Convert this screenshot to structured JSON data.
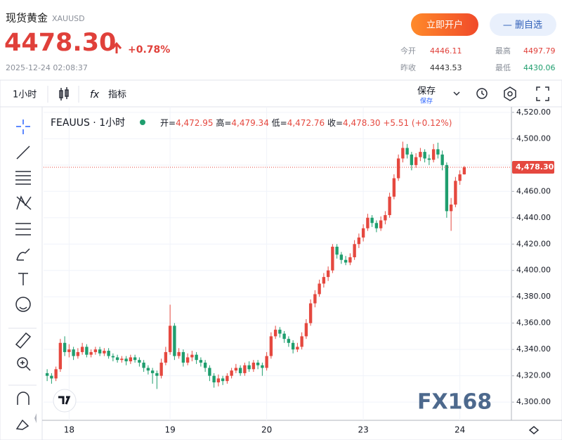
{
  "header": {
    "name": "现货黄金",
    "symbol": "XAUUSD",
    "price": "4478.30",
    "change": "+0.78%",
    "time": "2025-12-24 02:08:37",
    "open_account": "立即开户",
    "remove_watch": "— 删自选"
  },
  "stats": [
    {
      "label": "今开",
      "value": "4446.11"
    },
    {
      "label": "最高",
      "value": "4497.79"
    },
    {
      "label": "昨收",
      "value": "4443.53"
    },
    {
      "label": "最低",
      "value": "4430.06"
    }
  ],
  "toolbar": {
    "interval": "1小时",
    "fx": "fx",
    "indicators": "指标",
    "save": "保存",
    "save_sub": "保存"
  },
  "legend": {
    "title": "FEAUUS · 1小时",
    "open": {
      "label": "开=",
      "value": "4,472.95"
    },
    "high": {
      "label": "高=",
      "value": "4,479.34"
    },
    "low": {
      "label": "低=",
      "value": "4,472.76"
    },
    "close": {
      "label": "收=",
      "value": "4,478.30"
    },
    "change": "+5.51 (+0.12%)"
  },
  "watermark": "FX168",
  "chart_data": {
    "type": "candlestick",
    "up_color": "#e5483f",
    "down_color": "#1f9e6e",
    "grid": true,
    "categories": [
      null,
      null,
      null,
      null,
      null,
      "18",
      null,
      null,
      null,
      null,
      null,
      null,
      null,
      null,
      null,
      null,
      null,
      null,
      null,
      null,
      null,
      null,
      null,
      null,
      null,
      null,
      null,
      null,
      "19",
      null,
      null,
      null,
      null,
      null,
      null,
      null,
      null,
      null,
      null,
      null,
      null,
      null,
      null,
      null,
      null,
      null,
      null,
      null,
      null,
      null,
      "20",
      null,
      null,
      null,
      null,
      null,
      null,
      null,
      null,
      null,
      null,
      null,
      null,
      null,
      null,
      null,
      null,
      null,
      null,
      null,
      null,
      null,
      "23",
      null,
      null,
      null,
      null,
      null,
      null,
      null,
      null,
      null,
      null,
      null,
      null,
      null,
      null,
      null,
      null,
      null,
      null,
      null,
      null,
      null,
      "24",
      null
    ],
    "open": [
      4322,
      4320,
      4318,
      4325,
      4345,
      4338,
      4340,
      4335,
      4338,
      4342,
      4336,
      4338,
      4340,
      4337,
      4339,
      4335,
      4334,
      4332,
      4333,
      4331,
      4334,
      4332,
      4330,
      4326,
      4324,
      4322,
      4320,
      4330,
      4338,
      4358,
      4335,
      4338,
      4330,
      4334,
      4336,
      4332,
      4330,
      4326,
      4320,
      4315,
      4318,
      4316,
      4320,
      4324,
      4326,
      4322,
      4328,
      4325,
      4330,
      4328,
      4326,
      4335,
      4350,
      4355,
      4352,
      4348,
      4345,
      4340,
      4342,
      4350,
      4360,
      4375,
      4382,
      4390,
      4395,
      4400,
      4418,
      4412,
      4408,
      4406,
      4410,
      4420,
      4425,
      4432,
      4440,
      4436,
      4432,
      4438,
      4442,
      4456,
      4470,
      4485,
      4493,
      4488,
      4480,
      4486,
      4490,
      4485,
      4484,
      4492,
      4488,
      4480,
      4445,
      4450,
      4468,
      4472.95
    ],
    "high": [
      4325,
      4322,
      4327,
      4348,
      4350,
      4344,
      4342,
      4341,
      4345,
      4344,
      4340,
      4342,
      4342,
      4341,
      4341,
      4337,
      4336,
      4335,
      4335,
      4336,
      4336,
      4334,
      4332,
      4328,
      4326,
      4324,
      4333,
      4342,
      4374,
      4360,
      4341,
      4340,
      4337,
      4339,
      4338,
      4334,
      4332,
      4328,
      4322,
      4321,
      4320,
      4322,
      4326,
      4329,
      4328,
      4330,
      4331,
      4332,
      4332,
      4330,
      4338,
      4353,
      4358,
      4357,
      4354,
      4350,
      4347,
      4345,
      4353,
      4363,
      4378,
      4385,
      4393,
      4398,
      4403,
      4420,
      4420,
      4414,
      4411,
      4413,
      4423,
      4428,
      4435,
      4443,
      4442,
      4438,
      4441,
      4445,
      4459,
      4473,
      4488,
      4497.79,
      4496,
      4490,
      4489,
      4493,
      4492,
      4488,
      4496,
      4497,
      4491,
      4482,
      4455,
      4471,
      4476,
      4479.34
    ],
    "low": [
      4316,
      4314,
      4316,
      4323,
      4335,
      4334,
      4332,
      4333,
      4336,
      4334,
      4334,
      4336,
      4335,
      4335,
      4333,
      4331,
      4330,
      4330,
      4328,
      4329,
      4330,
      4327,
      4323,
      4321,
      4314,
      4310,
      4318,
      4328,
      4336,
      4332,
      4333,
      4327,
      4328,
      4331,
      4329,
      4327,
      4323,
      4316,
      4311,
      4312,
      4313,
      4314,
      4318,
      4322,
      4320,
      4320,
      4323,
      4323,
      4325,
      4320,
      4324,
      4333,
      4348,
      4349,
      4345,
      4342,
      4337,
      4338,
      4340,
      4348,
      4358,
      4372,
      4380,
      4387,
      4392,
      4398,
      4409,
      4405,
      4404,
      4404,
      4408,
      4417,
      4422,
      4430,
      4433,
      4429,
      4430,
      4435,
      4440,
      4454,
      4468,
      4482,
      4485,
      4476,
      4478,
      4483,
      4482,
      4480,
      4482,
      4485,
      4476,
      4440,
      4430.06,
      4448,
      4465,
      4472.76
    ],
    "close": [
      4320,
      4318,
      4325,
      4345,
      4338,
      4340,
      4335,
      4338,
      4342,
      4336,
      4338,
      4340,
      4337,
      4339,
      4335,
      4334,
      4332,
      4333,
      4331,
      4334,
      4332,
      4330,
      4326,
      4324,
      4322,
      4320,
      4330,
      4338,
      4358,
      4335,
      4338,
      4330,
      4334,
      4336,
      4332,
      4330,
      4326,
      4320,
      4315,
      4318,
      4316,
      4320,
      4324,
      4326,
      4322,
      4328,
      4325,
      4330,
      4328,
      4326,
      4335,
      4350,
      4355,
      4352,
      4348,
      4345,
      4340,
      4342,
      4350,
      4360,
      4375,
      4382,
      4390,
      4395,
      4400,
      4418,
      4412,
      4408,
      4406,
      4410,
      4420,
      4425,
      4432,
      4440,
      4436,
      4432,
      4438,
      4442,
      4456,
      4470,
      4485,
      4493,
      4488,
      4480,
      4486,
      4490,
      4485,
      4484,
      4492,
      4488,
      4480,
      4445,
      4450,
      4468,
      4472.95,
      4478.3
    ],
    "last_price": {
      "value": 4478.3,
      "label": "4,478.30"
    },
    "ylim": [
      4286.2,
      4524.2
    ],
    "yticks": [
      {
        "value": 4300,
        "label": "4,300.00"
      },
      {
        "value": 4320,
        "label": "4,320.00"
      },
      {
        "value": 4340,
        "label": "4,340.00"
      },
      {
        "value": 4360,
        "label": "4,360.00"
      },
      {
        "value": 4380,
        "label": "4,380.00"
      },
      {
        "value": 4400,
        "label": "4,400.00"
      },
      {
        "value": 4420,
        "label": "4,420.00"
      },
      {
        "value": 4440,
        "label": "4,440.00"
      },
      {
        "value": 4460,
        "label": "4,460.00"
      },
      {
        "value": 4480,
        "label": "4,480.00"
      },
      {
        "value": 4500,
        "label": "4,500.00"
      },
      {
        "value": 4520,
        "label": "4,520.00"
      }
    ]
  }
}
